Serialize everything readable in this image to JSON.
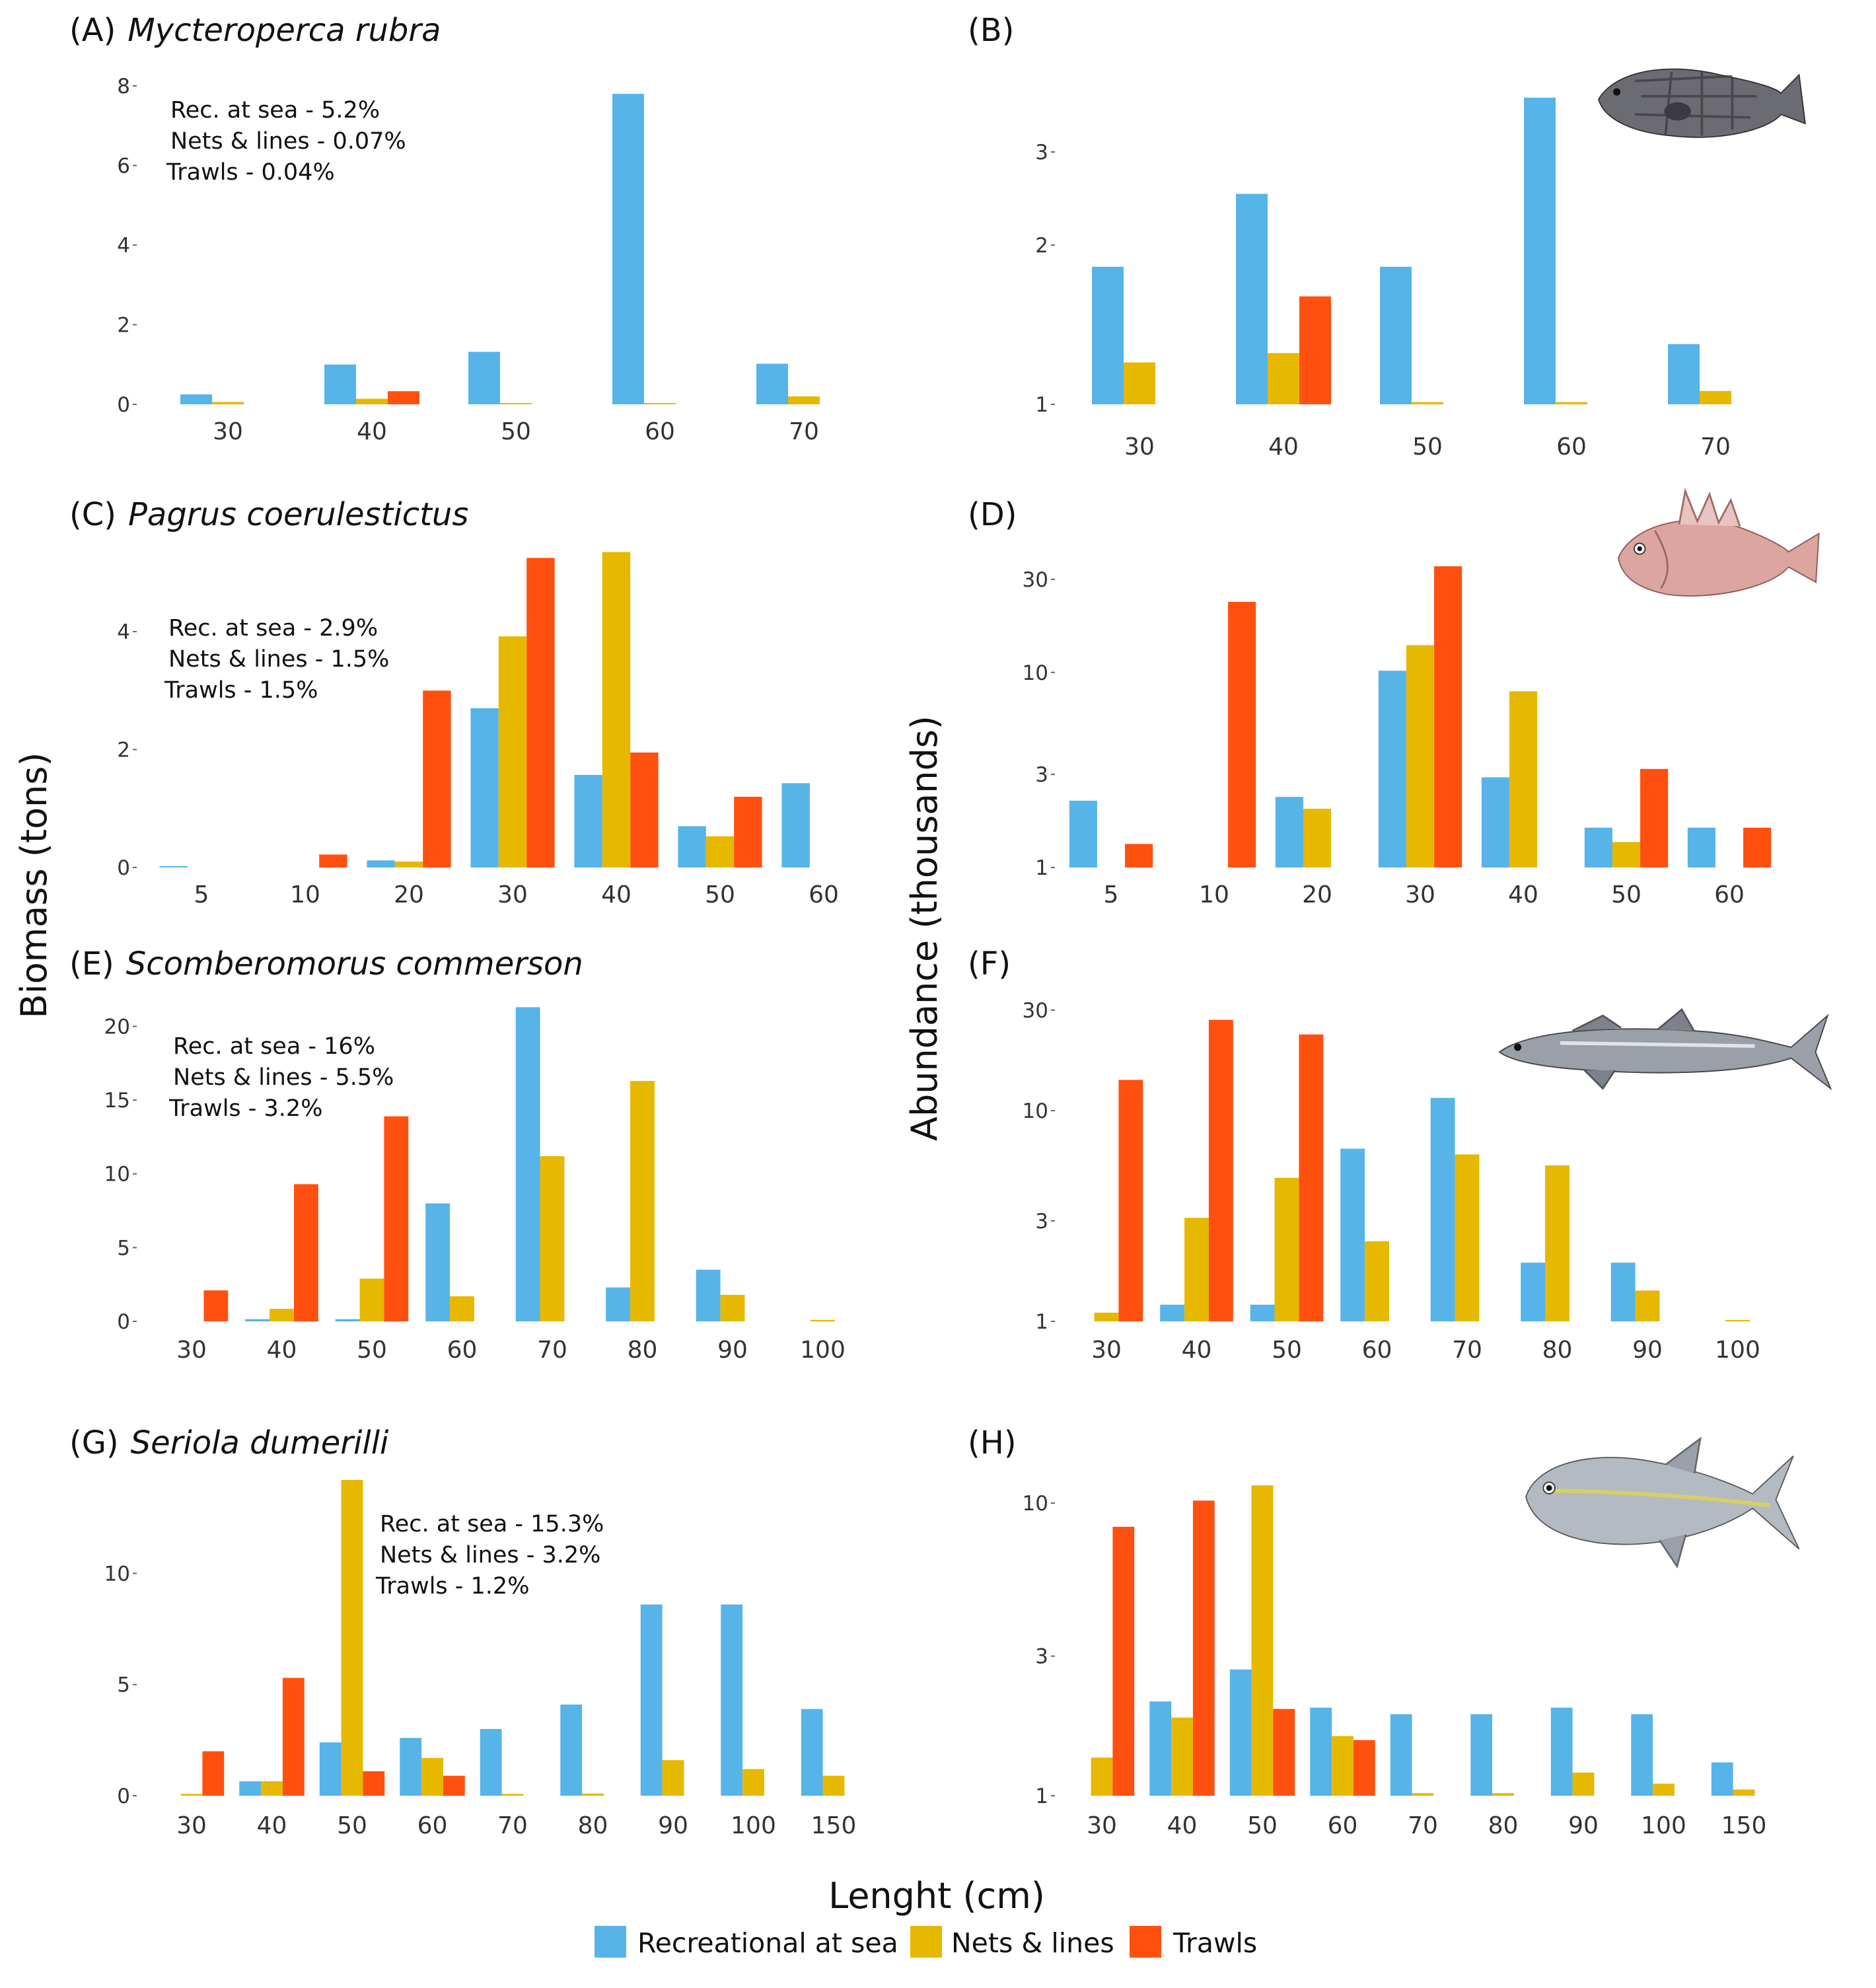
{
  "figure": {
    "y_title_left": "Biomass (tons)",
    "y_title_right": "Abundance (thousands)",
    "x_title": "Lenght (cm)"
  },
  "legend": [
    {
      "name": "Recreational at sea",
      "color": "#56B4E9"
    },
    {
      "name": "Nets & lines",
      "color": "#E6B800"
    },
    {
      "name": "Trawls",
      "color": "#FF5010"
    }
  ],
  "chart_data": [
    {
      "id": "A",
      "panel_label": "(A)",
      "species": "Mycteroperca rubra",
      "type": "bar",
      "measure": "Biomass (tons)",
      "scale": "linear",
      "categories": [
        "30",
        "40",
        "50",
        "60",
        "70"
      ],
      "yticks": [
        0,
        2,
        4,
        6,
        8
      ],
      "ylim": [
        0,
        8
      ],
      "series": [
        {
          "name": "Recreational at sea",
          "values": [
            0.25,
            1.0,
            1.32,
            7.8,
            1.02
          ]
        },
        {
          "name": "Nets & lines",
          "values": [
            0.06,
            0.14,
            0.02,
            0.03,
            0.2
          ]
        },
        {
          "name": "Trawls",
          "values": [
            0,
            0.33,
            0,
            0,
            0
          ]
        }
      ],
      "annotation": [
        "Rec. at sea - 5.2%",
        "Nets & lines - 0.07%",
        "Trawls - 0.04%"
      ],
      "annotation_position": "top-left"
    },
    {
      "id": "B",
      "panel_label": "(B)",
      "species": "Mycteroperca rubra",
      "type": "bar",
      "measure": "Abundance (thousands)",
      "scale": "log",
      "categories": [
        "30",
        "40",
        "50",
        "60",
        "70"
      ],
      "yticks": [
        1,
        2,
        3
      ],
      "ylim": [
        1,
        4
      ],
      "series": [
        {
          "name": "Recreational at sea",
          "values": [
            1.82,
            2.5,
            1.82,
            3.8,
            1.3
          ]
        },
        {
          "name": "Nets & lines",
          "values": [
            1.2,
            1.25,
            1.01,
            1.01,
            1.06
          ]
        },
        {
          "name": "Trawls",
          "values": [
            0,
            1.6,
            0,
            0,
            0
          ]
        }
      ],
      "fish": "grouper"
    },
    {
      "id": "C",
      "panel_label": "(C)",
      "species": "Pagrus coerulestictus",
      "type": "bar",
      "measure": "Biomass (tons)",
      "scale": "linear",
      "categories": [
        "5",
        "10",
        "20",
        "30",
        "40",
        "50",
        "60"
      ],
      "yticks": [
        0,
        2,
        4
      ],
      "ylim": [
        0,
        5.3
      ],
      "series": [
        {
          "name": "Recreational at sea",
          "values": [
            0.02,
            0,
            0.12,
            2.7,
            1.57,
            0.7,
            1.43
          ]
        },
        {
          "name": "Nets & lines",
          "values": [
            0,
            0,
            0.1,
            3.92,
            5.35,
            0.53,
            0
          ]
        },
        {
          "name": "Trawls",
          "values": [
            0,
            0.22,
            3.0,
            5.25,
            1.95,
            1.2,
            0
          ]
        }
      ],
      "annotation": [
        "Rec. at sea - 2.9%",
        "Nets & lines - 1.5%",
        "Trawls - 1.5%"
      ],
      "annotation_position": "top-left"
    },
    {
      "id": "D",
      "panel_label": "(D)",
      "species": "Pagrus coerulestictus",
      "type": "bar",
      "measure": "Abundance (thousands)",
      "scale": "log",
      "categories": [
        "5",
        "10",
        "20",
        "30",
        "40",
        "50",
        "60"
      ],
      "yticks": [
        1,
        3,
        10,
        30
      ],
      "ylim": [
        1,
        40
      ],
      "series": [
        {
          "name": "Recreational at sea",
          "values": [
            2.2,
            0,
            2.3,
            10.2,
            2.9,
            1.6,
            1.6
          ]
        },
        {
          "name": "Nets & lines",
          "values": [
            0,
            0,
            2.0,
            13.8,
            8.0,
            1.35,
            0
          ]
        },
        {
          "name": "Trawls",
          "values": [
            1.32,
            23,
            0,
            35,
            0,
            3.2,
            1.6
          ]
        }
      ],
      "fish": "seabream"
    },
    {
      "id": "E",
      "panel_label": "(E)",
      "species": "Scomberomorus commerson",
      "type": "bar",
      "measure": "Biomass (tons)",
      "scale": "linear",
      "categories": [
        "30",
        "40",
        "50",
        "60",
        "70",
        "80",
        "90",
        "100"
      ],
      "yticks": [
        0,
        5,
        10,
        15,
        20
      ],
      "ylim": [
        0,
        21.5
      ],
      "series": [
        {
          "name": "Recreational at sea",
          "values": [
            0,
            0.15,
            0.15,
            8.0,
            21.3,
            2.3,
            3.5,
            0
          ]
        },
        {
          "name": "Nets & lines",
          "values": [
            0,
            0.85,
            2.9,
            1.7,
            11.2,
            16.3,
            1.8,
            0.1
          ]
        },
        {
          "name": "Trawls",
          "values": [
            2.1,
            9.3,
            13.9,
            0,
            0,
            0,
            0,
            0
          ]
        }
      ],
      "annotation": [
        "Rec. at sea - 16%",
        "Nets & lines - 5.5%",
        "Trawls - 3.2%"
      ],
      "annotation_position": "top-left"
    },
    {
      "id": "F",
      "panel_label": "(F)",
      "species": "Scomberomorus commerson",
      "type": "bar",
      "measure": "Abundance (thousands)",
      "scale": "log",
      "categories": [
        "30",
        "40",
        "50",
        "60",
        "70",
        "80",
        "90",
        "100"
      ],
      "yticks": [
        1,
        3,
        10,
        30
      ],
      "ylim": [
        1,
        32
      ],
      "series": [
        {
          "name": "Recreational at sea",
          "values": [
            0,
            1.2,
            1.2,
            6.6,
            11.5,
            1.9,
            1.9,
            0
          ]
        },
        {
          "name": "Nets & lines",
          "values": [
            1.1,
            3.1,
            4.8,
            2.4,
            6.2,
            5.5,
            1.4,
            1.01
          ]
        },
        {
          "name": "Trawls",
          "values": [
            14,
            27,
            23,
            0,
            0,
            0,
            0,
            0
          ]
        }
      ],
      "fish": "mackerel"
    },
    {
      "id": "G",
      "panel_label": "(G)",
      "species": "Seriola dumerilli",
      "type": "bar",
      "measure": "Biomass (tons)",
      "scale": "linear",
      "categories": [
        "30",
        "40",
        "50",
        "60",
        "70",
        "80",
        "90",
        "100",
        "150"
      ],
      "yticks": [
        0,
        5,
        10
      ],
      "ylim": [
        0,
        14.2
      ],
      "series": [
        {
          "name": "Recreational at sea",
          "values": [
            0,
            0.65,
            2.4,
            2.6,
            3.0,
            4.1,
            8.6,
            8.6,
            3.9
          ]
        },
        {
          "name": "Nets & lines",
          "values": [
            0.08,
            0.65,
            14.2,
            1.7,
            0.08,
            0.1,
            1.6,
            1.2,
            0.9
          ]
        },
        {
          "name": "Trawls",
          "values": [
            2.0,
            5.3,
            1.1,
            0.9,
            0,
            0,
            0,
            0,
            0
          ]
        }
      ],
      "annotation": [
        "Rec. at sea - 15.3%",
        "Nets & lines - 3.2%",
        "Trawls - 1.2%"
      ],
      "annotation_position": "top-center"
    },
    {
      "id": "H",
      "panel_label": "(H)",
      "species": "Seriola dumerilli",
      "type": "bar",
      "measure": "Abundance (thousands)",
      "scale": "log",
      "categories": [
        "30",
        "40",
        "50",
        "60",
        "70",
        "80",
        "90",
        "100",
        "150"
      ],
      "yticks": [
        1,
        3,
        10
      ],
      "ylim": [
        1,
        12
      ],
      "series": [
        {
          "name": "Recreational at sea",
          "values": [
            0,
            2.1,
            2.7,
            2.0,
            1.9,
            1.9,
            2.0,
            1.9,
            1.3
          ]
        },
        {
          "name": "Nets & lines",
          "values": [
            1.35,
            1.85,
            11.5,
            1.6,
            1.02,
            1.02,
            1.2,
            1.1,
            1.05
          ]
        },
        {
          "name": "Trawls",
          "values": [
            8.3,
            10.2,
            1.98,
            1.55,
            0,
            0,
            0,
            0,
            0
          ]
        }
      ],
      "fish": "amberjack"
    }
  ]
}
